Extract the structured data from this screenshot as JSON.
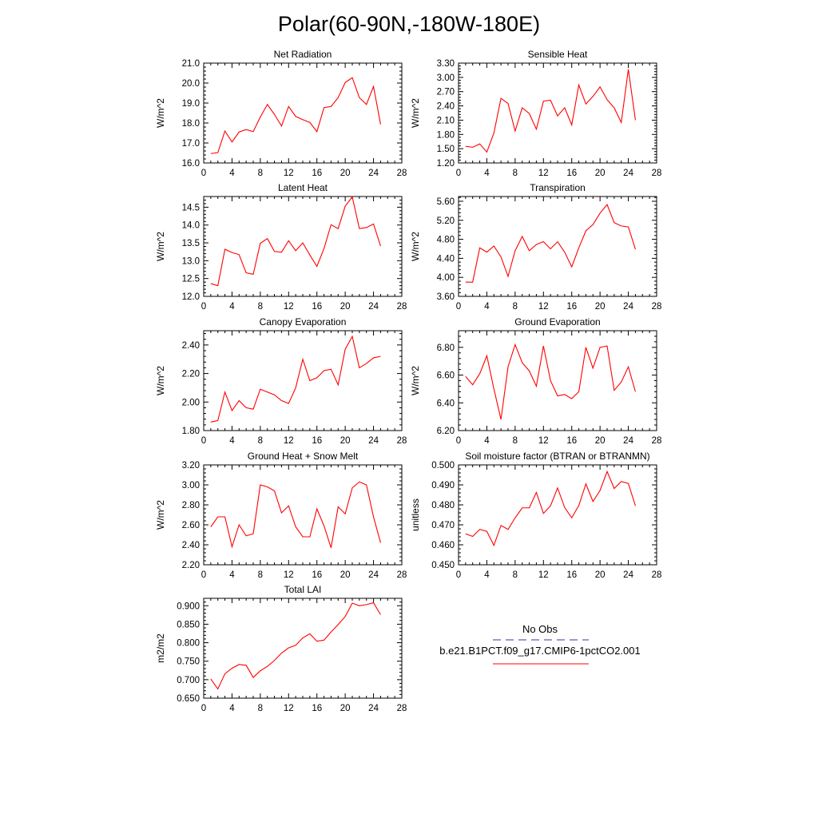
{
  "title": "Polar(60-90N,-180W-180E)",
  "colors": {
    "series": "#ff0000",
    "obs": "#3333aa",
    "axis": "#000000"
  },
  "legend": {
    "entries": [
      {
        "name": "No Obs",
        "color": "#3333aa",
        "dash": true
      },
      {
        "name": "b.e21.B1PCT.f09_g17.CMIP6-1pctCO2.001",
        "color": "#ff0000",
        "dash": false
      }
    ]
  },
  "chart_data": [
    {
      "type": "line",
      "title": "Net Radiation",
      "xlabel": "",
      "ylabel": "W/m^2",
      "xlim": [
        0,
        28
      ],
      "xticks": [
        "0",
        "4",
        "8",
        "12",
        "16",
        "20",
        "24",
        "28"
      ],
      "ylim": [
        16.0,
        21.0
      ],
      "yticks": [
        "16.0",
        "17.0",
        "18.0",
        "19.0",
        "20.0",
        "21.0"
      ],
      "x": [
        1,
        2,
        3,
        4,
        5,
        6,
        7,
        8,
        9,
        10,
        11,
        12,
        13,
        14,
        15,
        16,
        17,
        18,
        19,
        20,
        21,
        22,
        23,
        24,
        25
      ],
      "series": [
        {
          "name": "b.e21.B1PCT.f09_g17.CMIP6-1pctCO2.001",
          "values": [
            16.47,
            16.52,
            17.6,
            17.05,
            17.55,
            17.67,
            17.57,
            18.3,
            18.93,
            18.43,
            17.85,
            18.83,
            18.33,
            18.17,
            18.03,
            17.57,
            18.77,
            18.83,
            19.27,
            20.03,
            20.27,
            19.27,
            18.93,
            19.83,
            17.93
          ]
        }
      ]
    },
    {
      "type": "line",
      "title": "Sensible Heat",
      "xlabel": "",
      "ylabel": "W/m^2",
      "xlim": [
        0,
        28
      ],
      "xticks": [
        "0",
        "4",
        "8",
        "12",
        "16",
        "20",
        "24",
        "28"
      ],
      "ylim": [
        1.2,
        3.3
      ],
      "yticks": [
        "1.20",
        "1.50",
        "1.80",
        "2.10",
        "2.40",
        "2.70",
        "3.00",
        "3.30"
      ],
      "x": [
        1,
        2,
        3,
        4,
        5,
        6,
        7,
        8,
        9,
        10,
        11,
        12,
        13,
        14,
        15,
        16,
        17,
        18,
        19,
        20,
        21,
        22,
        23,
        24,
        25
      ],
      "series": [
        {
          "name": "b.e21.B1PCT.f09_g17.CMIP6-1pctCO2.001",
          "values": [
            1.55,
            1.53,
            1.6,
            1.43,
            1.83,
            2.56,
            2.45,
            1.87,
            2.36,
            2.24,
            1.91,
            2.5,
            2.52,
            2.19,
            2.36,
            2.0,
            2.84,
            2.44,
            2.6,
            2.8,
            2.53,
            2.36,
            2.05,
            3.17,
            2.1
          ]
        }
      ]
    },
    {
      "type": "line",
      "title": "Latent Heat",
      "xlabel": "",
      "ylabel": "W/m^2",
      "xlim": [
        0,
        28
      ],
      "xticks": [
        "0",
        "4",
        "8",
        "12",
        "16",
        "20",
        "24",
        "28"
      ],
      "ylim": [
        12.0,
        14.8
      ],
      "yticks": [
        "12.0",
        "12.5",
        "13.0",
        "13.5",
        "14.0",
        "14.5"
      ],
      "x": [
        1,
        2,
        3,
        4,
        5,
        6,
        7,
        8,
        9,
        10,
        11,
        12,
        13,
        14,
        15,
        16,
        17,
        18,
        19,
        20,
        21,
        22,
        23,
        24,
        25
      ],
      "series": [
        {
          "name": "b.e21.B1PCT.f09_g17.CMIP6-1pctCO2.001",
          "values": [
            12.36,
            12.3,
            13.32,
            13.23,
            13.17,
            12.66,
            12.62,
            13.49,
            13.62,
            13.26,
            13.24,
            13.56,
            13.28,
            13.5,
            13.16,
            12.84,
            13.34,
            14.01,
            13.9,
            14.53,
            14.79,
            13.9,
            13.93,
            14.03,
            13.41
          ]
        }
      ]
    },
    {
      "type": "line",
      "title": "Transpiration",
      "xlabel": "",
      "ylabel": "W/m^2",
      "xlim": [
        0,
        28
      ],
      "xticks": [
        "0",
        "4",
        "8",
        "12",
        "16",
        "20",
        "24",
        "28"
      ],
      "ylim": [
        3.6,
        5.7
      ],
      "yticks": [
        "3.60",
        "4.00",
        "4.40",
        "4.80",
        "5.20",
        "5.60"
      ],
      "x": [
        1,
        2,
        3,
        4,
        5,
        6,
        7,
        8,
        9,
        10,
        11,
        12,
        13,
        14,
        15,
        16,
        17,
        18,
        19,
        20,
        21,
        22,
        23,
        24,
        25
      ],
      "series": [
        {
          "name": "b.e21.B1PCT.f09_g17.CMIP6-1pctCO2.001",
          "values": [
            3.9,
            3.9,
            4.62,
            4.53,
            4.66,
            4.43,
            4.02,
            4.56,
            4.86,
            4.56,
            4.69,
            4.75,
            4.6,
            4.75,
            4.53,
            4.22,
            4.62,
            4.98,
            5.11,
            5.35,
            5.53,
            5.15,
            5.08,
            5.06,
            4.59
          ]
        }
      ]
    },
    {
      "type": "line",
      "title": "Canopy Evaporation",
      "xlabel": "",
      "ylabel": "W/m^2",
      "xlim": [
        0,
        28
      ],
      "xticks": [
        "0",
        "4",
        "8",
        "12",
        "16",
        "20",
        "24",
        "28"
      ],
      "ylim": [
        1.8,
        2.5
      ],
      "yticks": [
        "1.80",
        "2.00",
        "2.20",
        "2.40"
      ],
      "x": [
        1,
        2,
        3,
        4,
        5,
        6,
        7,
        8,
        9,
        10,
        11,
        12,
        13,
        14,
        15,
        16,
        17,
        18,
        19,
        20,
        21,
        22,
        23,
        24,
        25
      ],
      "series": [
        {
          "name": "b.e21.B1PCT.f09_g17.CMIP6-1pctCO2.001",
          "values": [
            1.86,
            1.87,
            2.07,
            1.94,
            2.01,
            1.96,
            1.95,
            2.09,
            2.07,
            2.05,
            2.01,
            1.99,
            2.1,
            2.3,
            2.15,
            2.17,
            2.22,
            2.23,
            2.12,
            2.37,
            2.46,
            2.24,
            2.27,
            2.31,
            2.32
          ]
        }
      ]
    },
    {
      "type": "line",
      "title": "Ground Evaporation",
      "xlabel": "",
      "ylabel": "W/m^2",
      "xlim": [
        0,
        28
      ],
      "xticks": [
        "0",
        "4",
        "8",
        "12",
        "16",
        "20",
        "24",
        "28"
      ],
      "ylim": [
        6.2,
        6.92
      ],
      "yticks": [
        "6.20",
        "6.40",
        "6.60",
        "6.80"
      ],
      "x": [
        1,
        2,
        3,
        4,
        5,
        6,
        7,
        8,
        9,
        10,
        11,
        12,
        13,
        14,
        15,
        16,
        17,
        18,
        19,
        20,
        21,
        22,
        23,
        24,
        25
      ],
      "series": [
        {
          "name": "b.e21.B1PCT.f09_g17.CMIP6-1pctCO2.001",
          "values": [
            6.59,
            6.53,
            6.61,
            6.74,
            6.5,
            6.28,
            6.66,
            6.82,
            6.69,
            6.63,
            6.52,
            6.81,
            6.56,
            6.45,
            6.46,
            6.43,
            6.48,
            6.8,
            6.65,
            6.8,
            6.81,
            6.49,
            6.55,
            6.66,
            6.48
          ]
        }
      ]
    },
    {
      "type": "line",
      "title": "Ground Heat + Snow Melt",
      "xlabel": "",
      "ylabel": "W/m^2",
      "xlim": [
        0,
        28
      ],
      "xticks": [
        "0",
        "4",
        "8",
        "12",
        "16",
        "20",
        "24",
        "28"
      ],
      "ylim": [
        2.2,
        3.2
      ],
      "yticks": [
        "2.20",
        "2.40",
        "2.60",
        "2.80",
        "3.00",
        "3.20"
      ],
      "x": [
        1,
        2,
        3,
        4,
        5,
        6,
        7,
        8,
        9,
        10,
        11,
        12,
        13,
        14,
        15,
        16,
        17,
        18,
        19,
        20,
        21,
        22,
        23,
        24,
        25
      ],
      "series": [
        {
          "name": "b.e21.B1PCT.f09_g17.CMIP6-1pctCO2.001",
          "values": [
            2.58,
            2.68,
            2.68,
            2.38,
            2.6,
            2.49,
            2.51,
            3.0,
            2.98,
            2.94,
            2.72,
            2.79,
            2.58,
            2.48,
            2.48,
            2.76,
            2.59,
            2.37,
            2.78,
            2.71,
            2.97,
            3.03,
            3.0,
            2.68,
            2.42
          ]
        }
      ]
    },
    {
      "type": "line",
      "title": "Soil moisture factor (BTRAN or BTRANMN)",
      "xlabel": "",
      "ylabel": "unitless",
      "xlim": [
        0,
        28
      ],
      "xticks": [
        "0",
        "4",
        "8",
        "12",
        "16",
        "20",
        "24",
        "28"
      ],
      "ylim": [
        0.45,
        0.5
      ],
      "yticks": [
        "0.450",
        "0.460",
        "0.470",
        "0.480",
        "0.490",
        "0.500"
      ],
      "x": [
        1,
        2,
        3,
        4,
        5,
        6,
        7,
        8,
        9,
        10,
        11,
        12,
        13,
        14,
        15,
        16,
        17,
        18,
        19,
        20,
        21,
        22,
        23,
        24,
        25
      ],
      "series": [
        {
          "name": "b.e21.B1PCT.f09_g17.CMIP6-1pctCO2.001",
          "values": [
            0.4655,
            0.4642,
            0.4677,
            0.4667,
            0.4597,
            0.4697,
            0.4677,
            0.4735,
            0.4785,
            0.4785,
            0.4862,
            0.4757,
            0.4795,
            0.4885,
            0.4787,
            0.4735,
            0.4797,
            0.4905,
            0.4817,
            0.4872,
            0.4967,
            0.4882,
            0.4917,
            0.4907,
            0.4795
          ]
        }
      ]
    },
    {
      "type": "line",
      "title": "Total LAI",
      "xlabel": "",
      "ylabel": "m2/m2",
      "xlim": [
        0,
        28
      ],
      "xticks": [
        "0",
        "4",
        "8",
        "12",
        "16",
        "20",
        "24",
        "28"
      ],
      "ylim": [
        0.65,
        0.92
      ],
      "yticks": [
        "0.650",
        "0.700",
        "0.750",
        "0.800",
        "0.850",
        "0.900"
      ],
      "x": [
        1,
        2,
        3,
        4,
        5,
        6,
        7,
        8,
        9,
        10,
        11,
        12,
        13,
        14,
        15,
        16,
        17,
        18,
        19,
        20,
        21,
        22,
        23,
        24,
        25
      ],
      "series": [
        {
          "name": "b.e21.B1PCT.f09_g17.CMIP6-1pctCO2.001",
          "values": [
            0.702,
            0.675,
            0.716,
            0.731,
            0.741,
            0.739,
            0.706,
            0.724,
            0.736,
            0.752,
            0.772,
            0.786,
            0.793,
            0.813,
            0.824,
            0.804,
            0.807,
            0.829,
            0.849,
            0.871,
            0.907,
            0.9,
            0.903,
            0.908,
            0.876
          ]
        }
      ]
    }
  ]
}
